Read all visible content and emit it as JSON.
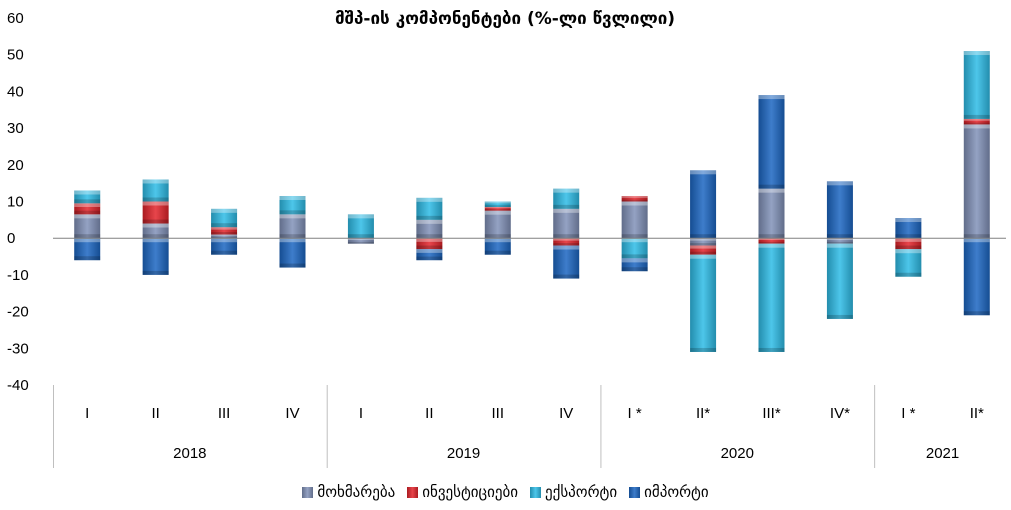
{
  "chart_data": {
    "type": "bar",
    "stacked": true,
    "title": "მშპ-ის კომპონენტები (%-ლი წვლილი)",
    "ylim": [
      -40,
      60
    ],
    "yticks": [
      60,
      50,
      40,
      30,
      20,
      10,
      0,
      -10,
      -20,
      -30,
      -40
    ],
    "grid": false,
    "legend_position": "bottom",
    "categories": [
      "I",
      "II",
      "III",
      "IV",
      "I",
      "II",
      "III",
      "IV",
      "I *",
      "II*",
      "III*",
      "IV*",
      "I *",
      "II*"
    ],
    "groups": [
      {
        "label": "2018",
        "span": 4
      },
      {
        "label": "2019",
        "span": 4
      },
      {
        "label": "2020",
        "span": 4
      },
      {
        "label": "2021",
        "span": 2
      }
    ],
    "series": [
      {
        "name": "მოხმარება",
        "color": "#8191b8",
        "values": [
          6.5,
          4.0,
          1.0,
          6.5,
          -1.5,
          5.0,
          7.5,
          8.0,
          10.0,
          -2.0,
          13.5,
          -1.5,
          0.0,
          31.0
        ]
      },
      {
        "name": "ინვესტიციები",
        "color": "#e3242b",
        "values": [
          3.0,
          6.0,
          2.0,
          0.0,
          0.0,
          -3.0,
          1.0,
          -2.0,
          1.5,
          -2.5,
          -1.5,
          0.0,
          -3.0,
          1.5
        ]
      },
      {
        "name": "ექსპორტი",
        "color": "#2ebce6",
        "values": [
          3.5,
          6.0,
          5.0,
          5.0,
          6.5,
          6.0,
          1.5,
          5.5,
          -5.5,
          -26.5,
          -29.5,
          -20.5,
          -7.5,
          18.5
        ]
      },
      {
        "name": "იმპორტი",
        "color": "#1c66c2",
        "values": [
          -6.0,
          -10.0,
          -4.5,
          -8.0,
          0.0,
          -3.0,
          -4.5,
          -9.0,
          -3.5,
          18.5,
          25.5,
          15.5,
          5.5,
          -21.0
        ]
      }
    ]
  }
}
